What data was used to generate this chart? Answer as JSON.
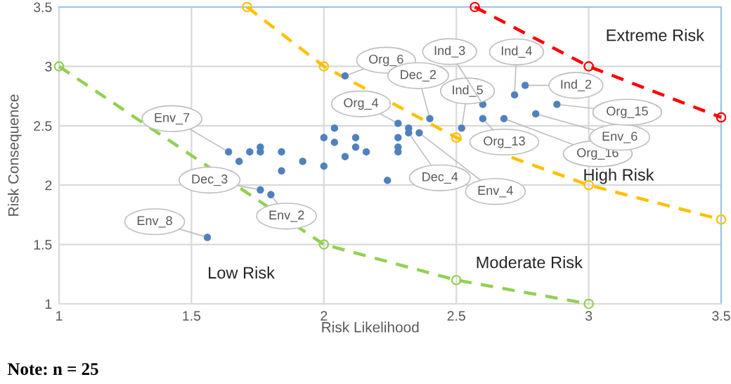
{
  "chart_data": {
    "type": "scatter",
    "xlabel": "Risk Likelihood",
    "ylabel": "Risk Consequence",
    "xlim": [
      1,
      3.5
    ],
    "ylim": [
      1,
      3.5
    ],
    "xticks": [
      1,
      1.5,
      2,
      2.5,
      3,
      3.5
    ],
    "yticks": [
      1,
      1.5,
      2,
      2.5,
      3,
      3.5
    ],
    "grid": true,
    "series": [
      {
        "color": "#4f81bd",
        "marker": "circle",
        "x": [
          1.56,
          1.64,
          1.68,
          1.72,
          1.76,
          1.76,
          1.76,
          1.8,
          1.84,
          1.84,
          1.92,
          2.0,
          2.0,
          2.04,
          2.04,
          2.08,
          2.08,
          2.12,
          2.12,
          2.16,
          2.24,
          2.28,
          2.28,
          2.28,
          2.28,
          2.32,
          2.32,
          2.36,
          2.4,
          2.52,
          2.6,
          2.6,
          2.68,
          2.72,
          2.76,
          2.8,
          2.88
        ],
        "values": [
          1.56,
          2.28,
          2.2,
          2.28,
          2.32,
          2.28,
          1.96,
          1.92,
          2.28,
          2.12,
          2.2,
          2.4,
          2.16,
          2.48,
          2.36,
          2.24,
          2.92,
          2.4,
          2.32,
          2.28,
          2.04,
          2.52,
          2.4,
          2.32,
          2.28,
          2.48,
          2.44,
          2.44,
          2.56,
          2.48,
          2.68,
          2.56,
          2.56,
          2.76,
          2.84,
          2.6,
          2.68
        ]
      },
      {
        "type": "line",
        "color": "#92d050",
        "marker": "circle",
        "line_style": "dashed",
        "x": [
          1,
          2,
          2.5,
          3
        ],
        "values": [
          3,
          1.5,
          1.2,
          1
        ]
      },
      {
        "type": "line",
        "color": "#ffc000",
        "marker": "circle",
        "line_style": "dashed",
        "x": [
          1.71,
          2,
          2.5,
          3,
          3.5
        ],
        "values": [
          3.5,
          3,
          2.4,
          2,
          1.71
        ]
      },
      {
        "type": "line",
        "color": "#ff0000",
        "marker": "circle",
        "line_style": "dashed",
        "x": [
          2.57,
          3,
          3.5
        ],
        "values": [
          3.5,
          3,
          2.57
        ]
      }
    ],
    "annotations": [
      {
        "text": "Env_8",
        "x": 1.56,
        "y": 1.56
      },
      {
        "text": "Env_7",
        "x": 1.64,
        "y": 2.28
      },
      {
        "text": "Dec_3",
        "x": 1.76,
        "y": 1.96
      },
      {
        "text": "Env_2",
        "x": 1.8,
        "y": 1.92
      },
      {
        "text": "Org_6",
        "x": 2.08,
        "y": 2.92
      },
      {
        "text": "Org_4",
        "x": 2.28,
        "y": 2.52
      },
      {
        "text": "Dec_4",
        "x": 2.32,
        "y": 2.44
      },
      {
        "text": "Env_4",
        "x": 2.36,
        "y": 2.44
      },
      {
        "text": "Dec_2",
        "x": 2.4,
        "y": 2.56
      },
      {
        "text": "Ind_5",
        "x": 2.52,
        "y": 2.48
      },
      {
        "text": "Ind_3",
        "x": 2.6,
        "y": 2.68
      },
      {
        "text": "Org_13",
        "x": 2.6,
        "y": 2.56
      },
      {
        "text": "Org_16",
        "x": 2.68,
        "y": 2.56
      },
      {
        "text": "Ind_4",
        "x": 2.72,
        "y": 2.76
      },
      {
        "text": "Ind_2",
        "x": 2.76,
        "y": 2.84
      },
      {
        "text": "Env_6",
        "x": 2.8,
        "y": 2.6
      },
      {
        "text": "Org_15",
        "x": 2.88,
        "y": 2.68
      },
      "Extreme Risk",
      "High Risk",
      "Moderate Risk",
      "Low Risk",
      "Note: n = 25"
    ]
  }
}
